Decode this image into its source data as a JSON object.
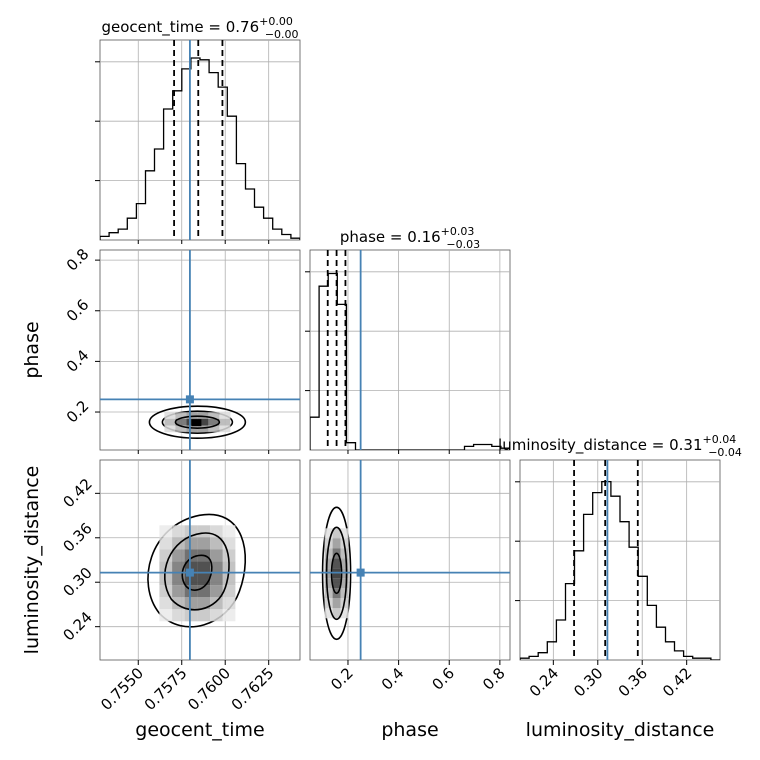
{
  "chart_data": {
    "type": "corner",
    "injection_color": "#4682b4",
    "parameters": [
      {
        "name": "geocent_time",
        "title": "geocent_time = 0.76",
        "title_value": "0.76",
        "title_plus": "+0.00",
        "title_minus": "−0.00",
        "range": [
          0.7528,
          0.7643
        ],
        "injection": 0.75797,
        "quantiles": [
          0.75706,
          0.75845,
          0.75984
        ],
        "ticks": [
          0.755,
          0.7575,
          0.76,
          0.7625
        ],
        "tick_labels": [
          "0.7550",
          "0.7575",
          "0.7600",
          "0.7625"
        ],
        "hist": [
          2,
          4,
          6,
          12,
          20,
          38,
          50,
          72,
          82,
          94,
          100,
          99,
          92,
          84,
          68,
          42,
          28,
          18,
          12,
          6,
          3,
          1
        ]
      },
      {
        "name": "phase",
        "title": "phase = 0.16",
        "title_value": "0.16",
        "title_plus": "+0.03",
        "title_minus": "−0.03",
        "range": [
          0.05,
          0.84
        ],
        "injection": 0.25,
        "quantiles": [
          0.12,
          0.155,
          0.19
        ],
        "ticks": [
          0.2,
          0.4,
          0.6,
          0.8
        ],
        "tick_labels": [
          "0.2",
          "0.4",
          "0.6",
          "0.8"
        ],
        "hist": [
          18,
          90,
          97,
          80,
          4,
          0,
          0,
          0,
          0,
          0,
          0,
          0,
          0,
          0,
          0,
          0,
          0,
          2,
          3,
          3,
          2,
          1
        ]
      },
      {
        "name": "luminosity_distance",
        "title": "luminosity_distance = 0.31",
        "title_value": "0.31",
        "title_plus": "+0.04",
        "title_minus": "−0.04",
        "range": [
          0.195,
          0.465
        ],
        "injection": 0.313,
        "quantiles": [
          0.268,
          0.31,
          0.354
        ],
        "ticks": [
          0.24,
          0.3,
          0.36,
          0.42
        ],
        "tick_labels": [
          "0.24",
          "0.30",
          "0.36",
          "0.42"
        ],
        "hist": [
          1,
          2,
          4,
          10,
          22,
          42,
          60,
          80,
          92,
          98,
          90,
          76,
          62,
          46,
          30,
          18,
          10,
          5,
          2,
          1,
          1,
          0
        ]
      }
    ],
    "axis_labels": {
      "x": [
        "geocent_time",
        "phase",
        "luminosity_distance"
      ],
      "y": [
        "phase",
        "luminosity_distance"
      ]
    },
    "grid": true
  }
}
